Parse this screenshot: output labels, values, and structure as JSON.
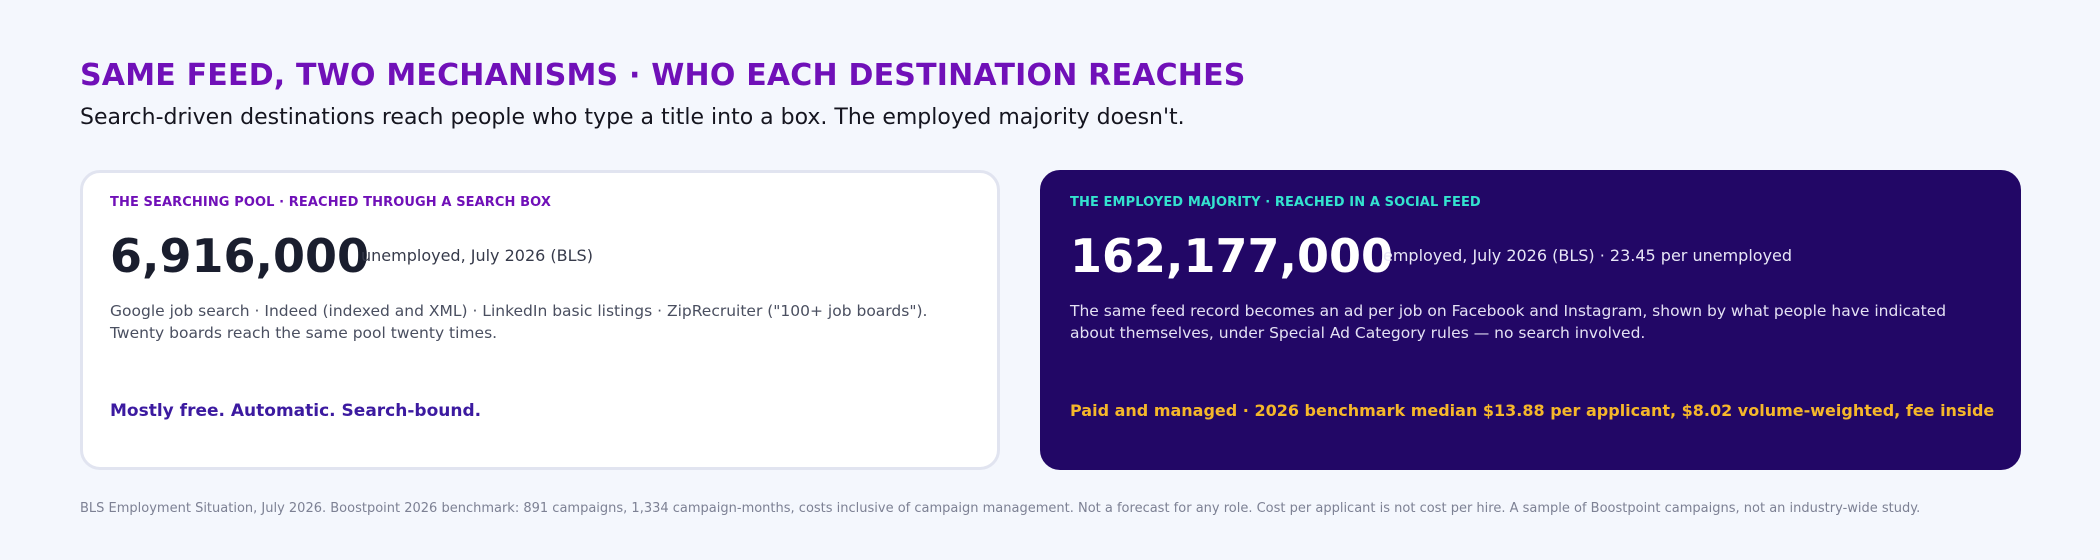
{
  "header": {
    "title": "SAME FEED, TWO MECHANISMS · WHO EACH DESTINATION REACHES",
    "subtitle": "Search-driven destinations reach people who type a title into a box. The employed majority doesn't."
  },
  "cards": [
    {
      "eyebrow": "THE SEARCHING POOL · REACHED THROUGH A SEARCH BOX",
      "stat": "6,916,000",
      "stat_note": "unemployed, July 2026 (BLS)",
      "body": "Google job search · Indeed (indexed and XML) · LinkedIn basic listings · ZipRecruiter (\"100+ job boards\"). Twenty boards reach the same pool twenty times.",
      "footer": "Mostly free. Automatic. Search-bound."
    },
    {
      "eyebrow": "THE EMPLOYED MAJORITY · REACHED IN A SOCIAL FEED",
      "stat": "162,177,000",
      "stat_note": "employed, July 2026 (BLS) · 23.45 per unemployed",
      "body": "The same feed record becomes an ad per job on Facebook and Instagram, shown by what people have indicated about themselves, under Special Ad Category rules — no search involved.",
      "footer": "Paid and managed · 2026 benchmark median $13.88 per applicant, $8.02 volume-weighted, fee inside"
    }
  ],
  "source": "BLS Employment Situation, July 2026. Boostpoint 2026 benchmark: 891 campaigns, 1,334 campaign-months, costs inclusive of campaign management. Not a forecast for any role. Cost per applicant is not cost per hire. A sample of Boostpoint campaigns, not an industry-wide study.",
  "colors": {
    "accent_purple": "#7010b8",
    "dark_card": "#220766",
    "teal": "#34e3cf",
    "amber": "#f5b72a"
  }
}
